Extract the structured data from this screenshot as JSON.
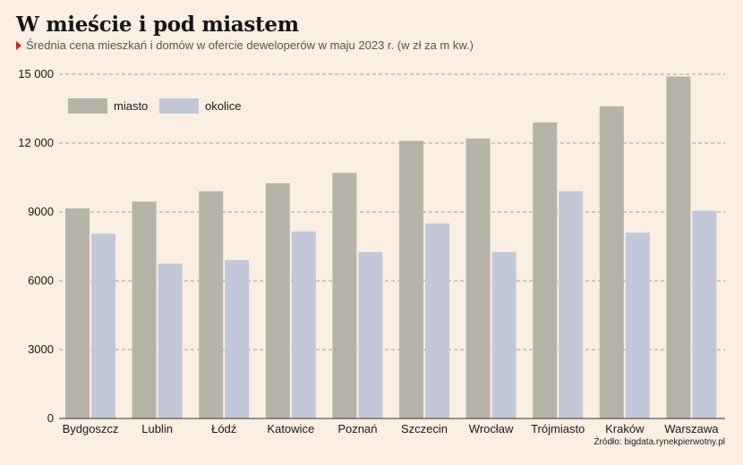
{
  "title": "W mieście i pod miastem",
  "subtitle": "Średnia cena mieszkań i domów w ofercie deweloperów w maju 2023 r. (w zł za m kw.)",
  "source": "Źródło: bigdata.rynekpierwotny.pl",
  "colors": {
    "background": "#fbeee2",
    "miasto": "#b6b4a8",
    "okolice": "#c3c8d8",
    "grid": "#a9a29a",
    "accent": "#d4202a"
  },
  "chart_data": {
    "type": "bar",
    "title": "W mieście i pod miastem",
    "subtitle": "Średnia cena mieszkań i domów w ofercie deweloperów w maju 2023 r. (w zł za m kw.)",
    "categories": [
      "Bydgoszcz",
      "Lublin",
      "Łódź",
      "Katowice",
      "Poznań",
      "Szczecin",
      "Wrocław",
      "Trójmiasto",
      "Kraków",
      "Warszawa"
    ],
    "series": [
      {
        "name": "miasto",
        "values": [
          9150,
          9450,
          9900,
          10250,
          10700,
          12100,
          12200,
          12900,
          13600,
          14900
        ]
      },
      {
        "name": "okolice",
        "values": [
          8050,
          6750,
          6900,
          8150,
          7250,
          8500,
          7250,
          9900,
          8100,
          9050
        ]
      }
    ],
    "ylim": [
      0,
      15000
    ],
    "yticks": [
      0,
      3000,
      6000,
      9000,
      12000,
      15000
    ],
    "ytick_labels": [
      "0",
      "3000",
      "6000",
      "9000",
      "12 000",
      "15 000"
    ],
    "grid": true,
    "legend": "top-left"
  }
}
